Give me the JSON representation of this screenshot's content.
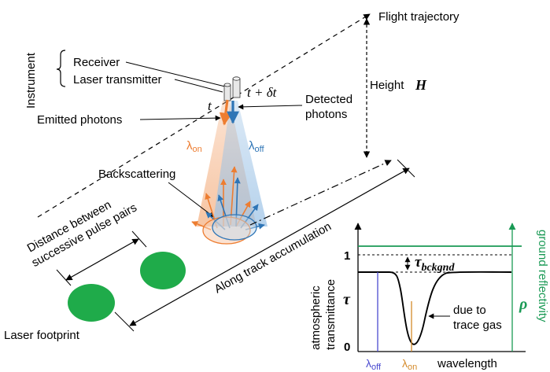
{
  "labels": {
    "flight_trajectory": "Flight trajectory",
    "instrument": "Instrument",
    "receiver": "Receiver",
    "laser_transmitter": "Laser transmitter",
    "time_t": "t",
    "time_t_delta": "t + δt",
    "detected_photons_line1": "Detected",
    "detected_photons_line2": "photons",
    "emitted_photons": "Emitted photons",
    "height": "Height",
    "height_symbol": "H",
    "lambda_on": "λ",
    "lambda_on_sub": "on",
    "lambda_off": "λ",
    "lambda_off_sub": "off",
    "backscattering": "Backscattering",
    "distance_line1": "Distance between",
    "distance_line2": "successive pulse pairs",
    "along_track": "Along track accumulation",
    "laser_footprint": "Laser footprint"
  },
  "graph": {
    "ylabel_line1": "atmospheric",
    "ylabel_line2": "transmittance",
    "tau_symbol": "τ",
    "tick_one": "1",
    "tick_zero": "0",
    "tau_bckgnd_symbol": "τ",
    "tau_bckgnd_sub": "bckgnd",
    "trace_gas_line1": "due to",
    "trace_gas_line2": "trace gas",
    "xlabel": "wavelength",
    "lambda_off": "λ",
    "lambda_off_sub": "off",
    "lambda_on": "λ",
    "lambda_on_sub": "on",
    "ground_reflectivity": "ground reflectivity",
    "rho_symbol": "ρ"
  },
  "colors": {
    "orange": "#ed7d31",
    "blue": "#2e75b6",
    "green": "#00b050",
    "footprint_green": "#1fab4a",
    "reflectivity_green": "#1a9a55",
    "gas_line_blue": "#4a4ad0",
    "gas_line_orange": "#d48a2a"
  }
}
